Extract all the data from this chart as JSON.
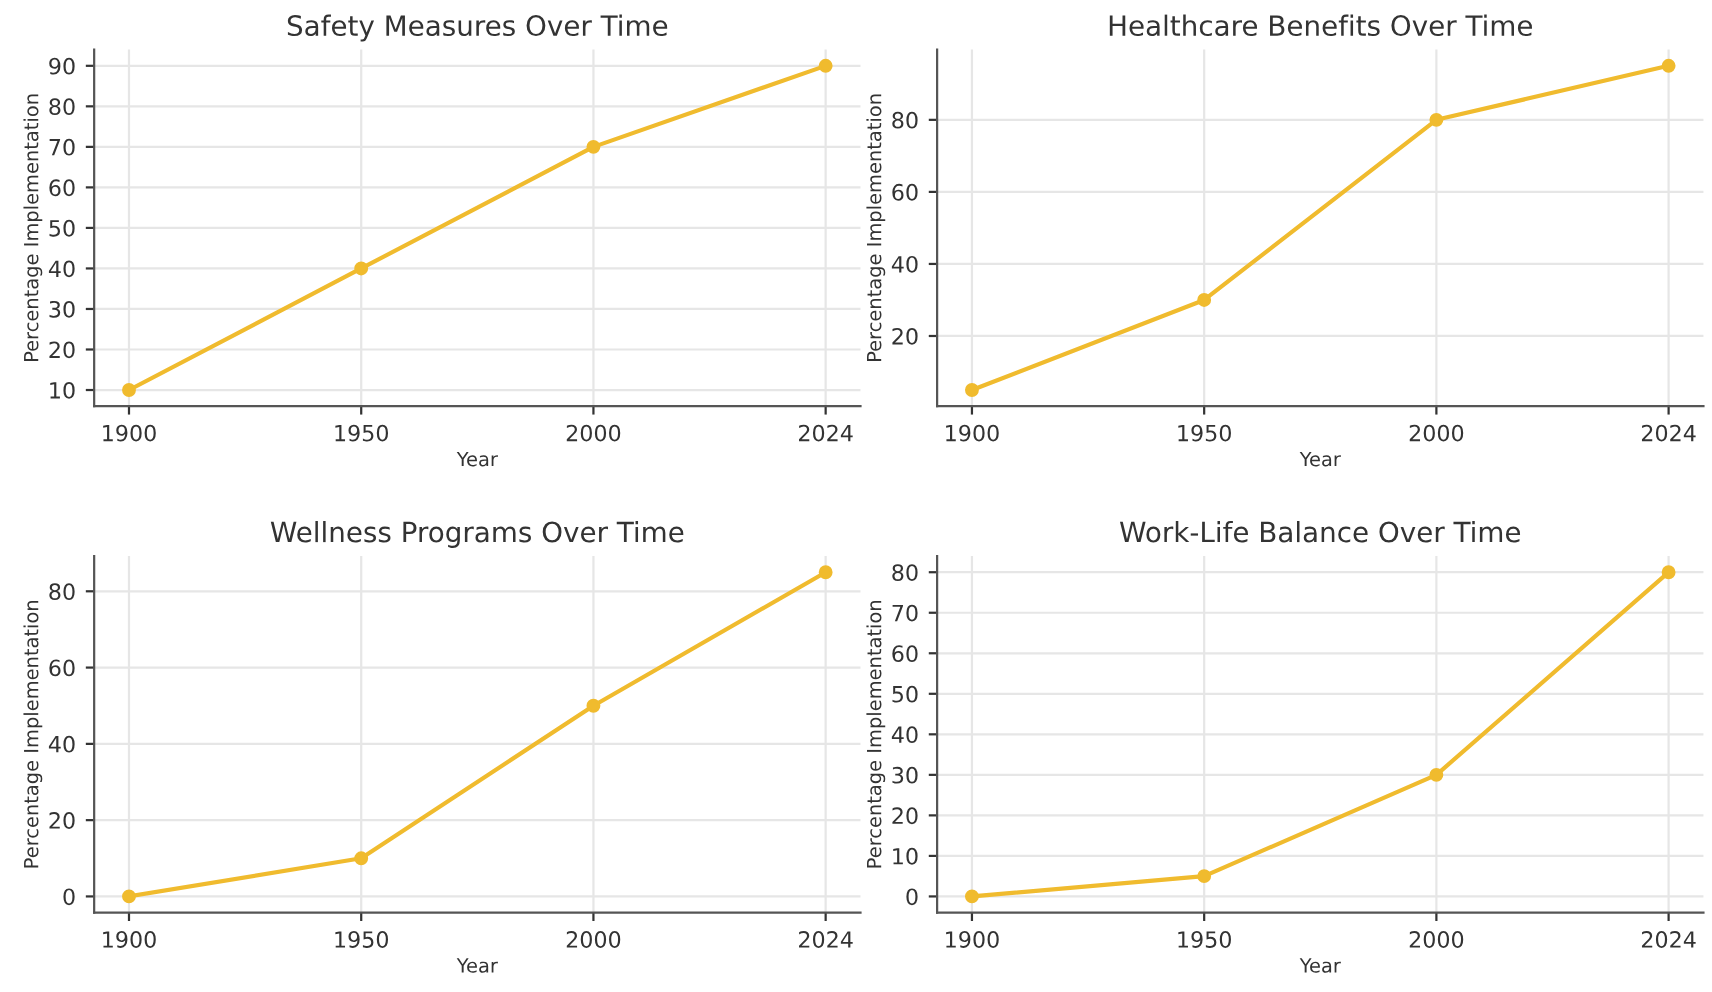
{
  "chart_data": [
    {
      "type": "line",
      "title": "Safety Measures Over Time",
      "xlabel": "Year",
      "ylabel": "Percentage Implementation",
      "categories": [
        "1900",
        "1950",
        "2000",
        "2024"
      ],
      "series": [
        {
          "color": "#f0bb2e",
          "values": [
            10,
            40,
            70,
            90
          ]
        }
      ],
      "ylim": [
        6,
        94
      ],
      "yticks": [
        10,
        20,
        30,
        40,
        50,
        60,
        70,
        80,
        90
      ],
      "grid": true,
      "marker": "circle",
      "line_style": "solid"
    },
    {
      "type": "line",
      "title": "Healthcare Benefits Over Time",
      "xlabel": "Year",
      "ylabel": "Percentage Implementation",
      "categories": [
        "1900",
        "1950",
        "2000",
        "2024"
      ],
      "series": [
        {
          "color": "#f0bb2e",
          "values": [
            5,
            30,
            80,
            95
          ]
        }
      ],
      "ylim": [
        0.5,
        99.5
      ],
      "yticks": [
        20,
        40,
        60,
        80
      ],
      "grid": true,
      "marker": "circle",
      "line_style": "solid"
    },
    {
      "type": "line",
      "title": "Wellness Programs Over Time",
      "xlabel": "Year",
      "ylabel": "Percentage Implementation",
      "categories": [
        "1900",
        "1950",
        "2000",
        "2024"
      ],
      "series": [
        {
          "color": "#f0bb2e",
          "values": [
            0,
            10,
            50,
            85
          ]
        }
      ],
      "ylim": [
        -4.25,
        89.25
      ],
      "yticks": [
        0,
        20,
        40,
        60,
        80
      ],
      "grid": true,
      "marker": "circle",
      "line_style": "solid"
    },
    {
      "type": "line",
      "title": "Work-Life Balance Over Time",
      "xlabel": "Year",
      "ylabel": "Percentage Implementation",
      "categories": [
        "1900",
        "1950",
        "2000",
        "2024"
      ],
      "series": [
        {
          "color": "#f0bb2e",
          "values": [
            0,
            5,
            30,
            80
          ]
        }
      ],
      "ylim": [
        -4,
        84
      ],
      "yticks": [
        0,
        10,
        20,
        30,
        40,
        50,
        60,
        70,
        80
      ],
      "grid": true,
      "marker": "circle",
      "line_style": "solid"
    }
  ]
}
